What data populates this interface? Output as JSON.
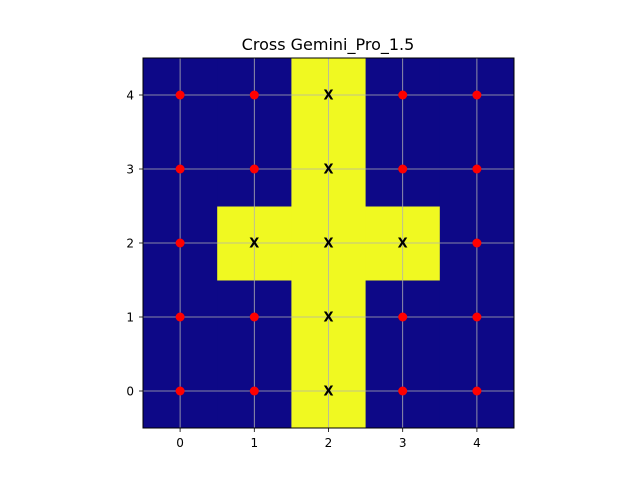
{
  "chart_data": {
    "type": "heatmap",
    "title": "Cross Gemini_Pro_1.5",
    "xlabel": "",
    "ylabel": "",
    "x_ticks": [
      0,
      1,
      2,
      3,
      4
    ],
    "y_ticks": [
      0,
      1,
      2,
      3,
      4
    ],
    "xlim": [
      -0.5,
      4.5
    ],
    "ylim": [
      -0.5,
      4.5
    ],
    "grid": true,
    "colors": {
      "background": "#0d0887",
      "highlight": "#f0f921",
      "dot": "#ff0000",
      "mark": "#000000",
      "grid": "#b0b0b0"
    },
    "grid_values": [
      [
        0,
        0,
        1,
        0,
        0
      ],
      [
        0,
        0,
        1,
        0,
        0
      ],
      [
        0,
        1,
        1,
        1,
        0
      ],
      [
        0,
        0,
        1,
        0,
        0
      ],
      [
        0,
        0,
        1,
        0,
        0
      ]
    ],
    "x_marks": [
      {
        "x": 2,
        "y": 0,
        "label": "X"
      },
      {
        "x": 2,
        "y": 1,
        "label": "X"
      },
      {
        "x": 1,
        "y": 2,
        "label": "X"
      },
      {
        "x": 2,
        "y": 2,
        "label": "X"
      },
      {
        "x": 3,
        "y": 2,
        "label": "X"
      },
      {
        "x": 2,
        "y": 3,
        "label": "X"
      },
      {
        "x": 2,
        "y": 4,
        "label": "X"
      }
    ],
    "dots": [
      {
        "x": 0,
        "y": 0
      },
      {
        "x": 1,
        "y": 0
      },
      {
        "x": 3,
        "y": 0
      },
      {
        "x": 4,
        "y": 0
      },
      {
        "x": 0,
        "y": 1
      },
      {
        "x": 1,
        "y": 1
      },
      {
        "x": 3,
        "y": 1
      },
      {
        "x": 4,
        "y": 1
      },
      {
        "x": 0,
        "y": 2
      },
      {
        "x": 4,
        "y": 2
      },
      {
        "x": 0,
        "y": 3
      },
      {
        "x": 1,
        "y": 3
      },
      {
        "x": 3,
        "y": 3
      },
      {
        "x": 4,
        "y": 3
      },
      {
        "x": 0,
        "y": 4
      },
      {
        "x": 1,
        "y": 4
      },
      {
        "x": 3,
        "y": 4
      },
      {
        "x": 4,
        "y": 4
      }
    ]
  }
}
